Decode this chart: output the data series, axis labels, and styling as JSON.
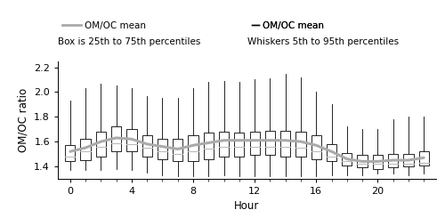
{
  "hours": [
    0,
    1,
    2,
    3,
    4,
    5,
    6,
    7,
    8,
    9,
    10,
    11,
    12,
    13,
    14,
    15,
    16,
    17,
    18,
    19,
    20,
    21,
    22,
    23
  ],
  "q5": [
    1.37,
    1.37,
    1.37,
    1.38,
    1.37,
    1.35,
    1.33,
    1.32,
    1.32,
    1.32,
    1.33,
    1.32,
    1.32,
    1.32,
    1.32,
    1.32,
    1.32,
    1.33,
    1.33,
    1.33,
    1.34,
    1.34,
    1.33,
    1.34
  ],
  "q25": [
    1.44,
    1.45,
    1.48,
    1.52,
    1.52,
    1.48,
    1.46,
    1.44,
    1.44,
    1.46,
    1.48,
    1.48,
    1.49,
    1.49,
    1.48,
    1.48,
    1.46,
    1.44,
    1.41,
    1.39,
    1.38,
    1.39,
    1.4,
    1.41
  ],
  "q50": [
    1.48,
    1.52,
    1.56,
    1.59,
    1.58,
    1.55,
    1.52,
    1.5,
    1.52,
    1.54,
    1.56,
    1.56,
    1.56,
    1.56,
    1.56,
    1.55,
    1.52,
    1.48,
    1.44,
    1.42,
    1.42,
    1.42,
    1.42,
    1.43
  ],
  "q75": [
    1.57,
    1.62,
    1.68,
    1.72,
    1.7,
    1.65,
    1.62,
    1.62,
    1.65,
    1.67,
    1.68,
    1.67,
    1.68,
    1.69,
    1.69,
    1.68,
    1.65,
    1.58,
    1.51,
    1.49,
    1.49,
    1.5,
    1.5,
    1.52
  ],
  "q95": [
    1.93,
    2.03,
    2.07,
    2.05,
    2.03,
    1.97,
    1.95,
    1.95,
    2.03,
    2.08,
    2.09,
    2.08,
    2.1,
    2.11,
    2.15,
    2.12,
    2.0,
    1.9,
    1.72,
    1.7,
    1.7,
    1.78,
    1.8,
    1.8
  ],
  "mean": [
    1.52,
    1.55,
    1.6,
    1.63,
    1.62,
    1.58,
    1.56,
    1.54,
    1.57,
    1.59,
    1.61,
    1.61,
    1.61,
    1.61,
    1.61,
    1.6,
    1.57,
    1.52,
    1.46,
    1.44,
    1.44,
    1.45,
    1.45,
    1.47
  ],
  "ylabel": "OM/OC ratio",
  "xlabel": "Hour",
  "ylim": [
    1.3,
    2.25
  ],
  "yticks": [
    1.4,
    1.6,
    1.8,
    2.0,
    2.2
  ],
  "xticks": [
    0,
    4,
    8,
    12,
    16,
    20
  ],
  "box_color": "white",
  "box_edge_color": "black",
  "whisker_color": "black",
  "median_color": "#bbbbbb",
  "mean_line_color": "#aaaaaa",
  "legend_text1": "OM/OC mean",
  "legend_text2": "Box is 25th to 75th percentiles",
  "legend_text3": "OM/OC mean",
  "legend_text4": "Whiskers 5th to 95th percentiles",
  "box_width": 0.65
}
